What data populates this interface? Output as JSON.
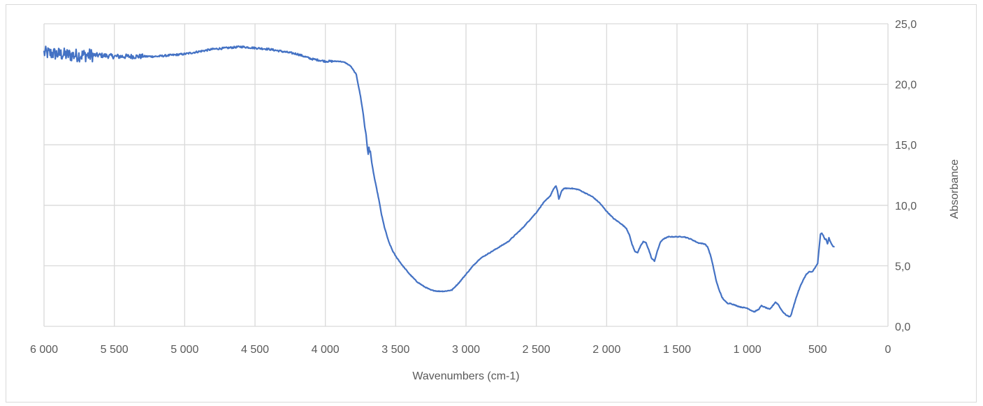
{
  "chart_data": {
    "type": "line",
    "title": "",
    "xlabel": "Wavenumbers (cm-1)",
    "ylabel": "Absorbance",
    "xlim": [
      6000,
      0
    ],
    "x_reversed": true,
    "ylim": [
      0,
      25
    ],
    "x_ticks": [
      6000,
      5500,
      5000,
      4500,
      4000,
      3500,
      3000,
      2500,
      2000,
      1500,
      1000,
      500,
      0
    ],
    "x_tick_labels": [
      "6 000",
      "5 500",
      "5 000",
      "4 500",
      "4 000",
      "3 500",
      "3 000",
      "2 500",
      "2 000",
      "1 500",
      "1 000",
      "500",
      "0"
    ],
    "y_ticks": [
      0,
      5,
      10,
      15,
      20,
      25
    ],
    "y_tick_labels": [
      "0,0",
      "5,0",
      "10,0",
      "15,0",
      "20,0",
      "25,0"
    ],
    "y_axis_side": "right",
    "grid": true,
    "legend": "none",
    "series_color": "#4472c4",
    "grid_color": "#d9d9d9",
    "series": [
      {
        "noise": [
          {
            "from": 6000,
            "to": 5650,
            "amplitude": 0.55
          },
          {
            "from": 5650,
            "to": 5300,
            "amplitude": 0.2
          },
          {
            "from": 5300,
            "to": 3950,
            "amplitude": 0.08
          },
          {
            "from": 3950,
            "to": 380,
            "amplitude": 0.03
          }
        ],
        "x": [
          6000,
          5900,
          5800,
          5700,
          5600,
          5500,
          5400,
          5300,
          5200,
          5100,
          5000,
          4900,
          4800,
          4700,
          4600,
          4500,
          4400,
          4300,
          4200,
          4100,
          4000,
          3950,
          3900,
          3860,
          3820,
          3780,
          3750,
          3730,
          3720,
          3710,
          3700,
          3695,
          3690,
          3685,
          3680,
          3670,
          3650,
          3620,
          3600,
          3580,
          3550,
          3520,
          3500,
          3450,
          3400,
          3350,
          3300,
          3250,
          3200,
          3150,
          3100,
          3050,
          3000,
          2950,
          2900,
          2800,
          2700,
          2600,
          2500,
          2450,
          2400,
          2380,
          2360,
          2350,
          2340,
          2320,
          2300,
          2250,
          2200,
          2150,
          2100,
          2050,
          2000,
          1950,
          1900,
          1860,
          1840,
          1820,
          1800,
          1780,
          1760,
          1740,
          1720,
          1700,
          1680,
          1660,
          1640,
          1620,
          1600,
          1560,
          1500,
          1450,
          1400,
          1350,
          1300,
          1280,
          1260,
          1240,
          1220,
          1200,
          1180,
          1160,
          1140,
          1120,
          1100,
          1050,
          1000,
          970,
          950,
          920,
          900,
          880,
          860,
          840,
          820,
          800,
          780,
          760,
          740,
          720,
          700,
          690,
          680,
          660,
          640,
          620,
          600,
          580,
          560,
          540,
          520,
          500,
          490,
          480,
          470,
          460,
          450,
          440,
          430,
          420,
          410,
          400,
          390,
          380
        ],
        "y": [
          22.6,
          22.5,
          22.4,
          22.4,
          22.4,
          22.3,
          22.3,
          22.3,
          22.3,
          22.4,
          22.5,
          22.7,
          22.9,
          23.0,
          23.1,
          23.0,
          22.9,
          22.7,
          22.5,
          22.1,
          21.9,
          21.9,
          21.9,
          21.8,
          21.5,
          20.8,
          19.0,
          17.5,
          16.5,
          15.8,
          14.6,
          14.2,
          14.8,
          14.4,
          14.5,
          13.5,
          12.2,
          10.5,
          9.2,
          8.2,
          7.0,
          6.2,
          5.8,
          5.0,
          4.3,
          3.7,
          3.3,
          3.0,
          2.9,
          2.9,
          3.0,
          3.6,
          4.3,
          5.0,
          5.6,
          6.3,
          7.0,
          8.1,
          9.4,
          10.2,
          10.8,
          11.3,
          11.6,
          11.2,
          10.5,
          11.2,
          11.4,
          11.4,
          11.3,
          11.0,
          10.7,
          10.2,
          9.5,
          8.9,
          8.5,
          8.1,
          7.6,
          6.8,
          6.2,
          6.1,
          6.6,
          7.0,
          6.9,
          6.3,
          5.6,
          5.4,
          6.2,
          6.9,
          7.2,
          7.4,
          7.4,
          7.4,
          7.2,
          6.9,
          6.8,
          6.5,
          5.8,
          4.8,
          3.7,
          3.0,
          2.4,
          2.1,
          1.9,
          1.9,
          1.8,
          1.6,
          1.5,
          1.3,
          1.2,
          1.4,
          1.7,
          1.6,
          1.5,
          1.4,
          1.7,
          2.0,
          1.8,
          1.4,
          1.1,
          0.9,
          0.8,
          0.9,
          1.3,
          2.1,
          2.8,
          3.4,
          3.9,
          4.3,
          4.5,
          4.5,
          4.8,
          5.2,
          6.4,
          7.6,
          7.7,
          7.5,
          7.2,
          7.2,
          6.8,
          7.3,
          7.0,
          6.8,
          6.6,
          6.6
        ]
      }
    ]
  }
}
